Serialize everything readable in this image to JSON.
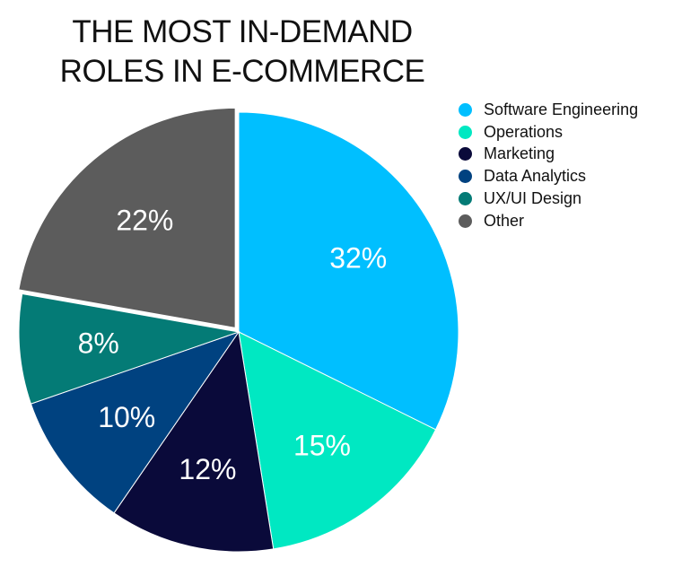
{
  "chart_data": {
    "type": "pie",
    "title": [
      "THE MOST IN-DEMAND",
      "ROLES IN E-COMMERCE"
    ],
    "legend_position": "right",
    "slices": [
      {
        "name": "Software Engineering",
        "value": 32,
        "label": "32%",
        "color": "#00bfff"
      },
      {
        "name": "Operations",
        "value": 15,
        "label": "15%",
        "color": "#00e8c2"
      },
      {
        "name": "Marketing",
        "value": 12,
        "label": "12%",
        "color": "#0a0a3a"
      },
      {
        "name": "Data Analytics",
        "value": 10,
        "label": "10%",
        "color": "#004280"
      },
      {
        "name": "UX/UI Design",
        "value": 8,
        "label": "8%",
        "color": "#047b76"
      },
      {
        "name": "Other",
        "value": 22,
        "label": "22%",
        "color": "#5c5c5c",
        "exploded": true
      }
    ]
  }
}
